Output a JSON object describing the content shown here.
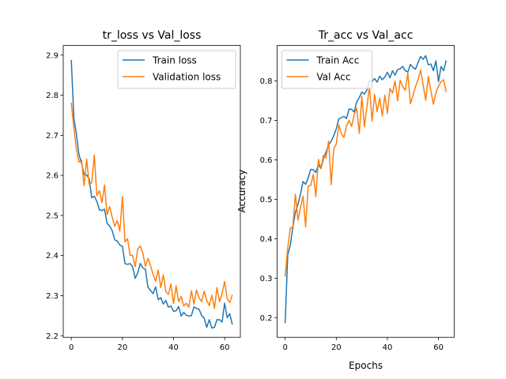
{
  "chart_data": [
    {
      "type": "line",
      "title": "tr_loss vs Val_loss",
      "xlabel": "",
      "ylabel": "",
      "xlim": [
        -3.15,
        66.15
      ],
      "ylim": [
        2.196,
        2.924
      ],
      "xticks": [
        0,
        20,
        40,
        60
      ],
      "yticks": [
        2.2,
        2.3,
        2.4,
        2.5,
        2.6,
        2.7,
        2.8,
        2.9
      ],
      "ytick_labels": [
        "2.2",
        "2.3",
        "2.4",
        "2.5",
        "2.6",
        "2.7",
        "2.8",
        "2.9"
      ],
      "legend_position": "top-right",
      "grid": false,
      "series": [
        {
          "name": "Train loss",
          "color": "#1f77b4",
          "values": [
            2.888,
            2.743,
            2.703,
            2.652,
            2.63,
            2.602,
            2.601,
            2.591,
            2.544,
            2.548,
            2.535,
            2.514,
            2.512,
            2.516,
            2.48,
            2.474,
            2.462,
            2.439,
            2.436,
            2.426,
            2.423,
            2.38,
            2.378,
            2.38,
            2.372,
            2.343,
            2.357,
            2.38,
            2.369,
            2.366,
            2.321,
            2.313,
            2.305,
            2.322,
            2.29,
            2.295,
            2.279,
            2.288,
            2.271,
            2.274,
            2.261,
            2.262,
            2.273,
            2.249,
            2.258,
            2.251,
            2.249,
            2.25,
            2.272,
            2.268,
            2.266,
            2.25,
            2.244,
            2.221,
            2.24,
            2.219,
            2.221,
            2.24,
            2.24,
            2.234,
            2.281,
            2.245,
            2.255,
            2.228
          ]
        },
        {
          "name": "Validation loss",
          "color": "#ff7f0e",
          "values": [
            2.781,
            2.719,
            2.665,
            2.633,
            2.639,
            2.574,
            2.641,
            2.577,
            2.582,
            2.651,
            2.549,
            2.562,
            2.532,
            2.576,
            2.502,
            2.522,
            2.496,
            2.473,
            2.487,
            2.461,
            2.547,
            2.434,
            2.442,
            2.401,
            2.4,
            2.372,
            2.417,
            2.424,
            2.406,
            2.373,
            2.393,
            2.375,
            2.353,
            2.336,
            2.364,
            2.32,
            2.352,
            2.31,
            2.303,
            2.329,
            2.28,
            2.325,
            2.285,
            2.298,
            2.274,
            2.281,
            2.271,
            2.312,
            2.279,
            2.314,
            2.295,
            2.285,
            2.311,
            2.288,
            2.275,
            2.301,
            2.268,
            2.32,
            2.285,
            2.305,
            2.335,
            2.292,
            2.283,
            2.302
          ]
        }
      ]
    },
    {
      "type": "line",
      "title": "Tr_acc vs Val_acc",
      "xlabel": "Epochs",
      "ylabel": "Accuracy",
      "xlim": [
        -3.15,
        66.15
      ],
      "ylim": [
        0.15,
        0.89
      ],
      "xticks": [
        0,
        20,
        40,
        60
      ],
      "yticks": [
        0.2,
        0.3,
        0.4,
        0.5,
        0.6,
        0.7,
        0.8
      ],
      "ytick_labels": [
        "0.2",
        "0.3",
        "0.4",
        "0.5",
        "0.6",
        "0.7",
        "0.8"
      ],
      "legend_position": "top-left",
      "grid": false,
      "series": [
        {
          "name": "Train Acc",
          "color": "#1f77b4",
          "values": [
            0.186,
            0.359,
            0.383,
            0.429,
            0.467,
            0.487,
            0.513,
            0.545,
            0.538,
            0.554,
            0.576,
            0.575,
            0.568,
            0.588,
            0.578,
            0.604,
            0.62,
            0.638,
            0.647,
            0.661,
            0.679,
            0.704,
            0.707,
            0.71,
            0.705,
            0.729,
            0.728,
            0.721,
            0.747,
            0.758,
            0.772,
            0.767,
            0.777,
            0.8,
            0.799,
            0.806,
            0.797,
            0.812,
            0.803,
            0.81,
            0.822,
            0.808,
            0.826,
            0.815,
            0.829,
            0.831,
            0.837,
            0.826,
            0.823,
            0.842,
            0.834,
            0.83,
            0.847,
            0.862,
            0.855,
            0.864,
            0.841,
            0.843,
            0.826,
            0.851,
            0.798,
            0.837,
            0.826,
            0.852
          ]
        },
        {
          "name": "Val Acc",
          "color": "#ff7f0e",
          "values": [
            0.304,
            0.376,
            0.427,
            0.43,
            0.513,
            0.447,
            0.479,
            0.508,
            0.43,
            0.534,
            0.535,
            0.563,
            0.507,
            0.601,
            0.578,
            0.612,
            0.605,
            0.648,
            0.537,
            0.628,
            0.64,
            0.689,
            0.666,
            0.657,
            0.686,
            0.7,
            0.685,
            0.714,
            0.731,
            0.667,
            0.761,
            0.684,
            0.735,
            0.787,
            0.698,
            0.766,
            0.722,
            0.757,
            0.711,
            0.764,
            0.718,
            0.781,
            0.769,
            0.8,
            0.75,
            0.802,
            0.786,
            0.776,
            0.82,
            0.742,
            0.763,
            0.786,
            0.803,
            0.828,
            0.79,
            0.751,
            0.812,
            0.776,
            0.741,
            0.771,
            0.787,
            0.798,
            0.803,
            0.772
          ]
        }
      ]
    }
  ]
}
